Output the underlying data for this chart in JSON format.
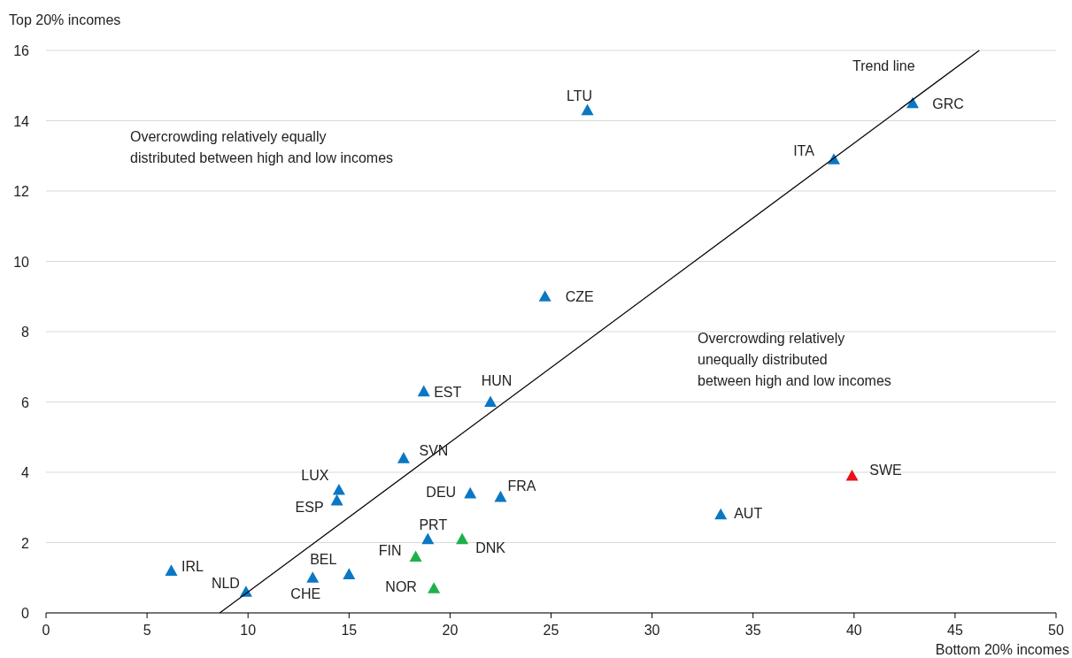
{
  "chart_data": {
    "type": "scatter",
    "xlabel": "Bottom 20% incomes",
    "ylabel": "Top 20% incomes",
    "xlim": [
      0,
      50
    ],
    "xticks": [
      0,
      5,
      10,
      15,
      20,
      25,
      30,
      35,
      40,
      45,
      50
    ],
    "ylim": [
      0,
      16
    ],
    "yticks": [
      0,
      2,
      4,
      6,
      8,
      10,
      12,
      14,
      16
    ],
    "grid": "y",
    "marker": "triangle",
    "series": [
      {
        "color": "#0a77c4",
        "x": [
          6.2,
          9.9,
          13.2,
          15.0,
          14.4,
          14.5,
          17.7,
          18.7,
          18.9,
          21.0,
          22.0,
          22.5,
          24.7,
          26.8,
          33.4,
          39.0,
          42.9
        ],
        "values": [
          1.2,
          0.6,
          1.0,
          1.1,
          3.2,
          3.5,
          4.4,
          6.3,
          2.1,
          3.4,
          6.0,
          3.3,
          9.0,
          14.3,
          2.8,
          12.9,
          14.5
        ]
      },
      {
        "color": "#1db04b",
        "x": [
          18.3,
          19.2,
          20.6
        ],
        "values": [
          1.6,
          0.7,
          2.1
        ]
      },
      {
        "color": "#e8131a",
        "x": [
          39.9
        ],
        "values": [
          3.9
        ]
      },
      {
        "type": "line",
        "color": "#000000",
        "marker": "none",
        "x": [
          8.6,
          46.2
        ],
        "values": [
          0,
          16
        ]
      }
    ],
    "annotations": [
      "Overcrowding relatively equally\ndistributed between high and low incomes",
      "Overcrowding relatively\nunequally distributed\nbetween high and low incomes",
      "Trend line",
      {
        "text": "IRL",
        "x": 6.2,
        "y": 1.2
      },
      {
        "text": "NLD",
        "x": 9.9,
        "y": 0.6
      },
      {
        "text": "CHE",
        "x": 13.2,
        "y": 1.0
      },
      {
        "text": "BEL",
        "x": 15.0,
        "y": 1.1
      },
      {
        "text": "ESP",
        "x": 14.4,
        "y": 3.2
      },
      {
        "text": "LUX",
        "x": 14.5,
        "y": 3.5
      },
      {
        "text": "SVN",
        "x": 17.7,
        "y": 4.4
      },
      {
        "text": "EST",
        "x": 18.7,
        "y": 6.3
      },
      {
        "text": "FIN",
        "x": 18.3,
        "y": 1.6
      },
      {
        "text": "PRT",
        "x": 18.9,
        "y": 2.1
      },
      {
        "text": "NOR",
        "x": 19.2,
        "y": 0.7
      },
      {
        "text": "DNK",
        "x": 20.6,
        "y": 2.1
      },
      {
        "text": "DEU",
        "x": 21.0,
        "y": 3.4
      },
      {
        "text": "HUN",
        "x": 22.0,
        "y": 6.0
      },
      {
        "text": "FRA",
        "x": 22.5,
        "y": 3.3
      },
      {
        "text": "CZE",
        "x": 24.7,
        "y": 9.0
      },
      {
        "text": "LTU",
        "x": 26.8,
        "y": 14.3
      },
      {
        "text": "AUT",
        "x": 33.4,
        "y": 2.8
      },
      {
        "text": "SWE",
        "x": 39.9,
        "y": 3.9
      },
      {
        "text": "ITA",
        "x": 39.0,
        "y": 12.9
      },
      {
        "text": "GRC",
        "x": 42.9,
        "y": 14.5
      }
    ]
  }
}
